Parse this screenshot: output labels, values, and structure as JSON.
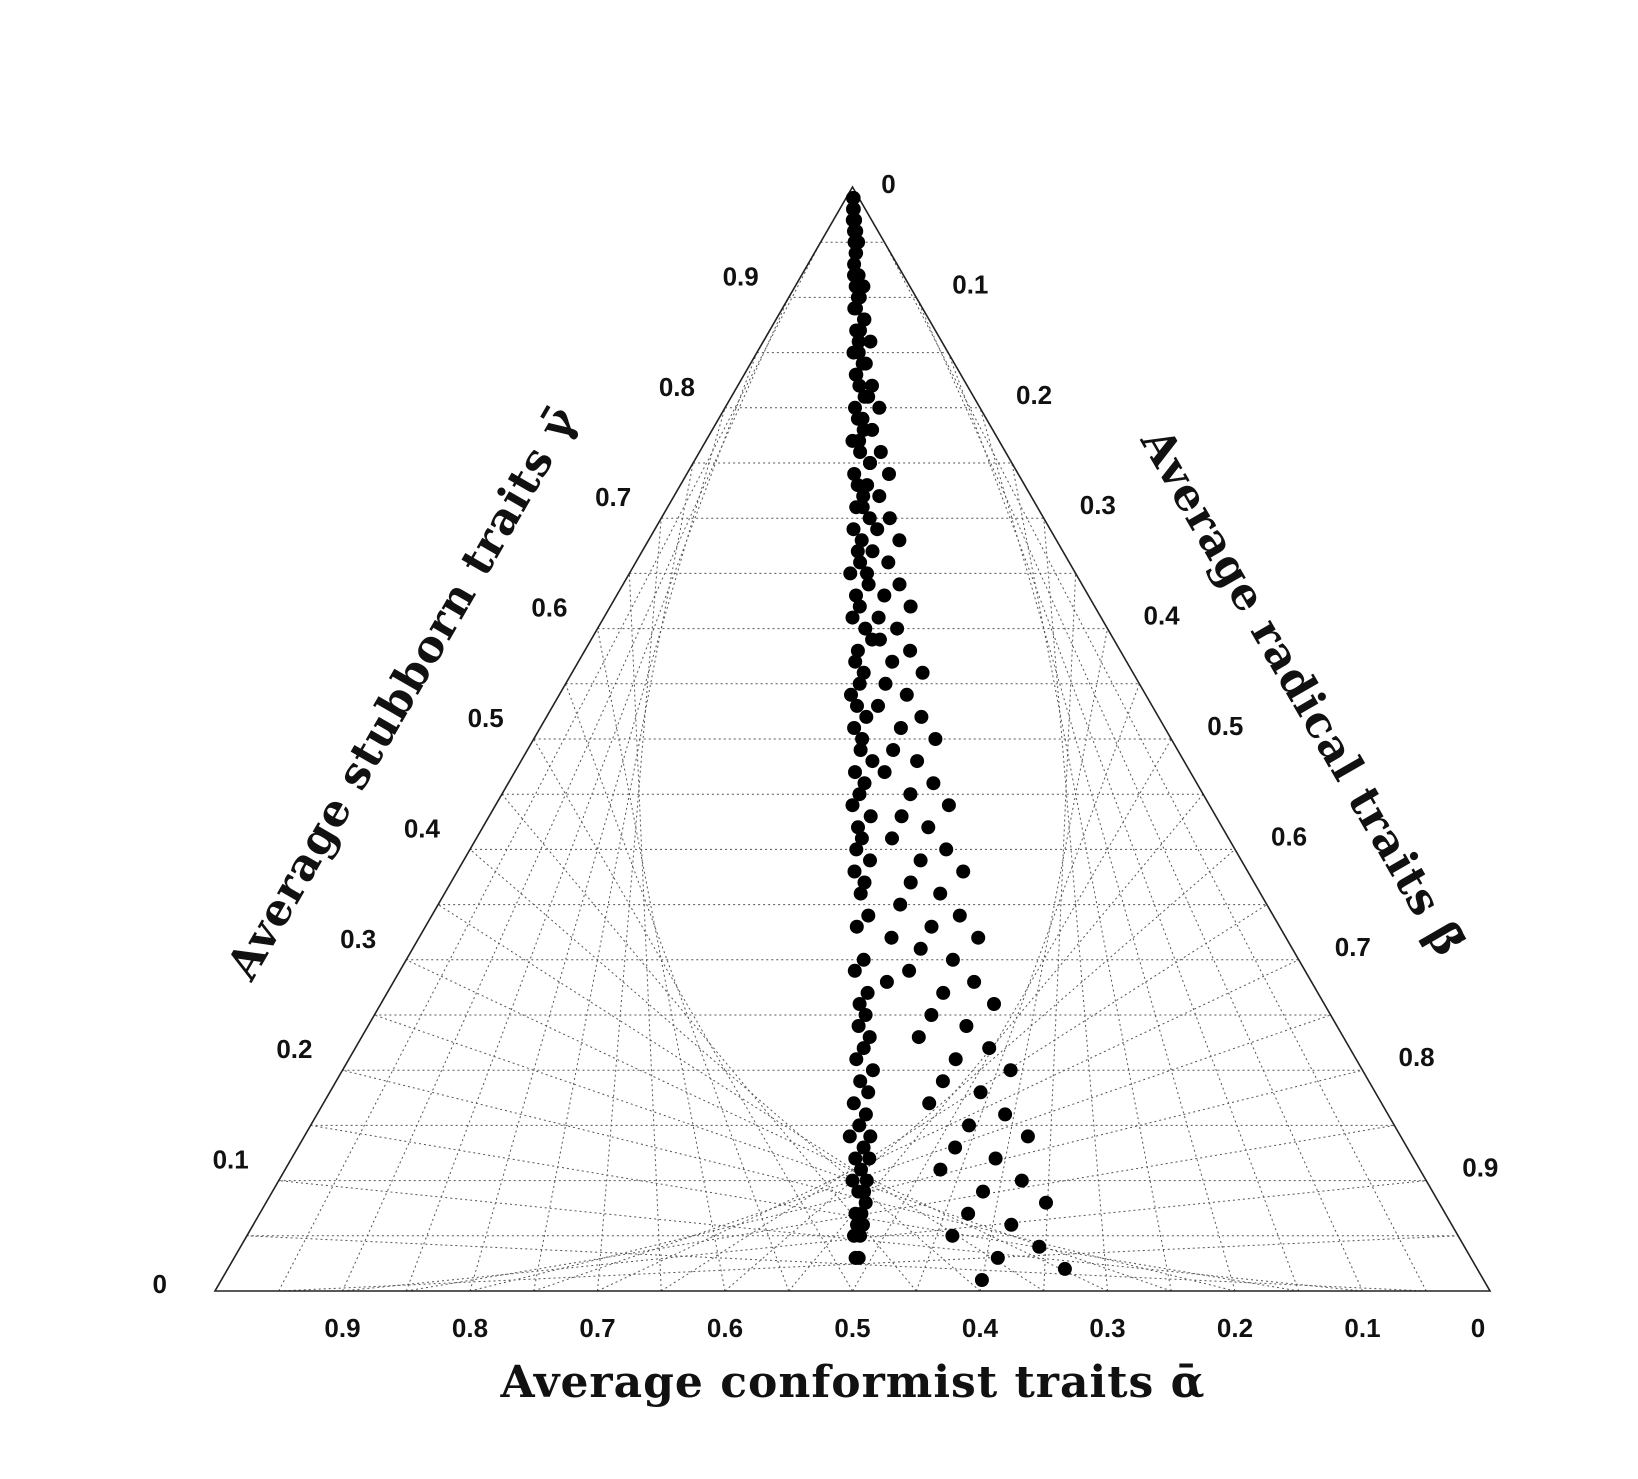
{
  "chart_data": {
    "type": "scatter",
    "subtype": "ternary",
    "title": "",
    "axes": {
      "bottom": {
        "label": "Average conformist traits ᾱ",
        "ticks": [
          "0",
          "0.1",
          "0.2",
          "0.3",
          "0.4",
          "0.5",
          "0.6",
          "0.7",
          "0.8",
          "0.9"
        ]
      },
      "right": {
        "label": "Average radical traits β̄",
        "ticks": [
          "0",
          "0.1",
          "0.2",
          "0.3",
          "0.4",
          "0.5",
          "0.6",
          "0.7",
          "0.8",
          "0.9"
        ]
      },
      "left": {
        "label": "Average stubborn traits γ̄",
        "ticks": [
          "0",
          "0.1",
          "0.2",
          "0.3",
          "0.4",
          "0.5",
          "0.6",
          "0.7",
          "0.8",
          "0.9"
        ]
      }
    },
    "grid": true,
    "legend": "none",
    "marker_color": "#000000",
    "points": [
      [
        0.01,
        0.03
      ],
      [
        0.02,
        0.03
      ],
      [
        0.005,
        0.05
      ],
      [
        0.025,
        0.05
      ],
      [
        0.015,
        0.06
      ],
      [
        0.035,
        0.06
      ],
      [
        0.01,
        0.07
      ],
      [
        0.03,
        0.07
      ],
      [
        0.045,
        0.08
      ],
      [
        0.02,
        0.09
      ],
      [
        0.04,
        0.09
      ],
      [
        0.0,
        0.1
      ],
      [
        0.05,
        0.1
      ],
      [
        0.03,
        0.11
      ],
      [
        0.06,
        0.12
      ],
      [
        0.01,
        0.12
      ],
      [
        0.04,
        0.13
      ],
      [
        -0.01,
        0.14
      ],
      [
        0.065,
        0.14
      ],
      [
        0.025,
        0.15
      ],
      [
        0.05,
        0.16
      ],
      [
        0.005,
        0.17
      ],
      [
        0.06,
        0.18
      ],
      [
        0.03,
        0.19
      ],
      [
        0.08,
        0.2
      ],
      [
        0.015,
        0.21
      ],
      [
        0.045,
        0.22
      ],
      [
        0.07,
        0.23
      ],
      [
        0.025,
        0.24
      ],
      [
        0.055,
        0.25
      ],
      [
        0.03,
        0.26
      ],
      [
        0.065,
        0.27
      ],
      [
        0.15,
        0.28
      ],
      [
        0.01,
        0.29
      ],
      [
        0.05,
        0.3
      ],
      [
        0.18,
        0.32
      ],
      [
        0.02,
        0.33
      ],
      [
        0.075,
        0.34
      ],
      [
        0.04,
        0.36
      ],
      [
        0.06,
        0.37
      ],
      [
        0.01,
        0.38
      ],
      [
        0.09,
        0.39
      ],
      [
        0.02,
        0.4
      ],
      [
        0.05,
        0.41
      ],
      [
        0.03,
        0.42
      ],
      [
        0.1,
        0.43
      ],
      [
        0.0,
        0.44
      ],
      [
        0.04,
        0.45
      ],
      [
        0.07,
        0.46
      ],
      [
        0.015,
        0.47
      ],
      [
        0.12,
        0.48
      ],
      [
        0.05,
        0.49
      ],
      [
        0.06,
        0.5
      ],
      [
        0.01,
        0.51
      ],
      [
        0.09,
        0.52
      ],
      [
        0.03,
        0.53
      ],
      [
        -0.01,
        0.54
      ],
      [
        0.05,
        0.55
      ],
      [
        0.08,
        0.56
      ],
      [
        0.02,
        0.57
      ],
      [
        0.04,
        0.58
      ],
      [
        0.21,
        0.59
      ],
      [
        0.1,
        0.6
      ],
      [
        0.0,
        0.61
      ],
      [
        0.06,
        0.62
      ],
      [
        0.03,
        0.63
      ],
      [
        0.14,
        0.64
      ],
      [
        -0.02,
        0.65
      ],
      [
        0.07,
        0.66
      ],
      [
        0.05,
        0.67
      ],
      [
        0.09,
        0.68
      ],
      [
        0.01,
        0.69
      ],
      [
        0.18,
        0.7
      ],
      [
        0.04,
        0.71
      ],
      [
        0.12,
        0.72
      ],
      [
        0.06,
        0.73
      ],
      [
        0.02,
        0.74
      ],
      [
        0.22,
        0.75
      ],
      [
        0.1,
        0.76
      ],
      [
        0.0,
        0.77
      ],
      [
        0.16,
        0.78
      ],
      [
        0.08,
        0.79
      ],
      [
        0.04,
        0.8
      ],
      [
        0.26,
        0.81
      ],
      [
        0.12,
        0.82
      ],
      [
        0.06,
        0.83
      ],
      [
        0.2,
        0.84
      ],
      [
        0.02,
        0.85
      ],
      [
        0.14,
        0.86
      ],
      [
        0.09,
        0.87
      ],
      [
        0.3,
        0.88
      ],
      [
        0.05,
        0.89
      ],
      [
        0.17,
        0.9
      ],
      [
        0.11,
        0.91
      ],
      [
        0.24,
        0.92
      ],
      [
        0.07,
        0.93
      ],
      [
        0.19,
        0.94
      ],
      [
        0.13,
        0.95
      ],
      [
        0.29,
        0.96
      ],
      [
        0.03,
        0.97
      ],
      [
        0.21,
        0.98
      ],
      [
        0.15,
        0.99
      ],
      [
        0.33,
        0.99
      ],
      [
        0.08,
        0.98
      ],
      [
        0.27,
        0.97
      ],
      [
        0.12,
        0.96
      ],
      [
        0.35,
        0.95
      ],
      [
        0.16,
        0.94
      ],
      [
        0.06,
        0.92
      ],
      [
        0.38,
        0.91
      ],
      [
        0.23,
        0.9
      ],
      [
        0.1,
        0.89
      ],
      [
        0.31,
        0.88
      ],
      [
        0.18,
        0.87
      ],
      [
        0.4,
        0.86
      ],
      [
        0.13,
        0.85
      ],
      [
        0.26,
        0.84
      ],
      [
        0.07,
        0.83
      ],
      [
        0.34,
        0.82
      ],
      [
        0.2,
        0.81
      ],
      [
        0.42,
        0.8
      ],
      [
        0.15,
        0.79
      ],
      [
        0.28,
        0.78
      ],
      [
        0.09,
        0.77
      ],
      [
        0.37,
        0.76
      ],
      [
        0.22,
        0.75
      ],
      [
        0.44,
        0.74
      ],
      [
        0.17,
        0.73
      ],
      [
        0.3,
        0.72
      ],
      [
        0.11,
        0.71
      ],
      [
        0.39,
        0.7
      ],
      [
        0.25,
        0.69
      ],
      [
        0.46,
        0.68
      ],
      [
        0.19,
        0.67
      ],
      [
        0.33,
        0.66
      ],
      [
        0.13,
        0.65
      ],
      [
        0.41,
        0.64
      ],
      [
        0.27,
        0.63
      ],
      [
        0.48,
        0.62
      ],
      [
        0.21,
        0.61
      ],
      [
        0.35,
        0.6
      ],
      [
        0.15,
        0.59
      ],
      [
        0.43,
        0.58
      ],
      [
        0.29,
        0.57
      ],
      [
        0.5,
        0.56
      ],
      [
        0.23,
        0.55
      ],
      [
        0.37,
        0.54
      ],
      [
        0.17,
        0.53
      ],
      [
        0.45,
        0.52
      ],
      [
        0.31,
        0.51
      ],
      [
        0.52,
        0.5
      ],
      [
        0.25,
        0.49
      ],
      [
        0.39,
        0.48
      ],
      [
        0.19,
        0.47
      ],
      [
        0.47,
        0.46
      ],
      [
        0.33,
        0.45
      ],
      [
        0.54,
        0.44
      ],
      [
        0.27,
        0.43
      ],
      [
        0.41,
        0.42
      ],
      [
        0.21,
        0.41
      ],
      [
        0.49,
        0.4
      ],
      [
        0.35,
        0.39
      ],
      [
        0.56,
        0.38
      ],
      [
        0.29,
        0.37
      ],
      [
        0.43,
        0.36
      ],
      [
        0.23,
        0.35
      ],
      [
        0.51,
        0.34
      ],
      [
        0.37,
        0.33
      ],
      [
        0.58,
        0.32
      ],
      [
        0.31,
        0.31
      ],
      [
        0.45,
        0.3
      ],
      [
        0.25,
        0.29
      ],
      [
        0.53,
        0.28
      ],
      [
        0.39,
        0.27
      ],
      [
        0.6,
        0.26
      ],
      [
        0.33,
        0.25
      ],
      [
        0.47,
        0.24
      ],
      [
        0.27,
        0.23
      ],
      [
        0.55,
        0.22
      ],
      [
        0.41,
        0.21
      ],
      [
        0.62,
        0.2
      ],
      [
        0.35,
        0.19
      ],
      [
        0.49,
        0.18
      ],
      [
        0.29,
        0.17
      ],
      [
        0.57,
        0.16
      ],
      [
        0.43,
        0.15
      ],
      [
        0.64,
        0.14
      ],
      [
        0.37,
        0.13
      ],
      [
        0.51,
        0.12
      ],
      [
        0.31,
        0.11
      ],
      [
        0.59,
        0.1
      ],
      [
        0.45,
        0.09
      ],
      [
        0.66,
        0.08
      ],
      [
        0.39,
        0.07
      ],
      [
        0.53,
        0.06
      ],
      [
        0.33,
        0.05
      ],
      [
        0.61,
        0.04
      ],
      [
        0.47,
        0.03
      ],
      [
        0.68,
        0.02
      ],
      [
        0.41,
        0.01
      ]
    ]
  }
}
